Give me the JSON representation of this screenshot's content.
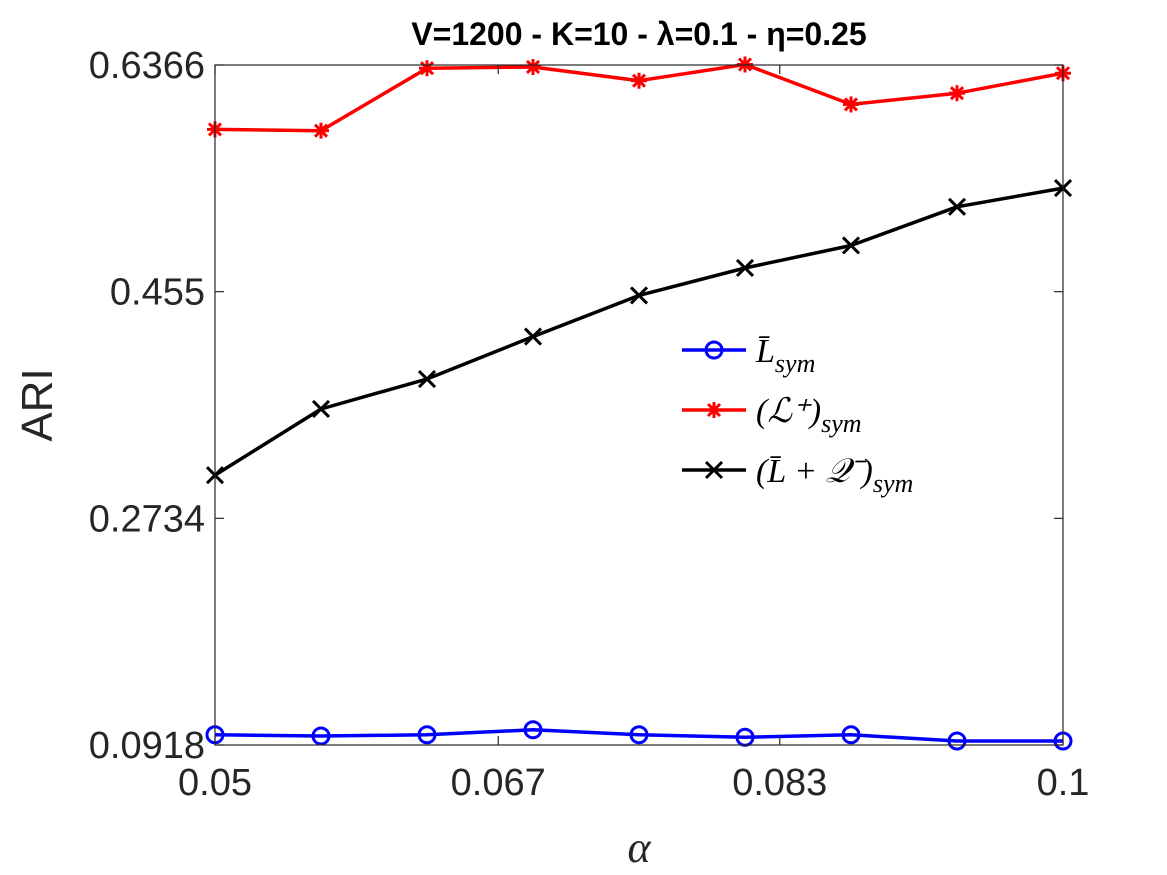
{
  "chart_data": {
    "type": "line",
    "title": "V=1200 - K=10 - λ=0.1 - η=0.25",
    "xlabel": "α",
    "ylabel": "ARI",
    "xlim": [
      0.05,
      0.1
    ],
    "ylim": [
      0.0918,
      0.6366
    ],
    "x_ticks": [
      0.05,
      0.0667,
      0.0833,
      0.1
    ],
    "x_tick_labels": [
      "0.05",
      "0.067",
      "0.083",
      "0.1"
    ],
    "y_ticks": [
      0.0918,
      0.2734,
      0.455,
      0.6366
    ],
    "y_tick_labels": [
      "0.0918",
      "0.2734",
      "0.455",
      "0.6366"
    ],
    "x": [
      0.05,
      0.05625,
      0.0625,
      0.06875,
      0.075,
      0.08125,
      0.0875,
      0.09375,
      0.1
    ],
    "legend_position": "center-right",
    "series": [
      {
        "name": "L̄_sym",
        "legend_label": "L̄",
        "legend_sub": "sym",
        "color": "#0000ff",
        "marker": "circle",
        "values": [
          0.1,
          0.099,
          0.1,
          0.104,
          0.1,
          0.098,
          0.1,
          0.095,
          0.095
        ]
      },
      {
        "name": "(L+)_sym",
        "legend_label": "(ℒ⁺)",
        "legend_sub": "sym",
        "color": "#ff0000",
        "marker": "asterisk",
        "values": [
          0.585,
          0.584,
          0.634,
          0.635,
          0.624,
          0.637,
          0.605,
          0.614,
          0.63
        ]
      },
      {
        "name": "(L̄+Q-)_sym",
        "legend_label": "(L̄ + 𝒬⁻)",
        "legend_sub": "sym",
        "color": "#000000",
        "marker": "x",
        "values": [
          0.308,
          0.361,
          0.385,
          0.419,
          0.452,
          0.474,
          0.492,
          0.523,
          0.538
        ]
      }
    ]
  }
}
